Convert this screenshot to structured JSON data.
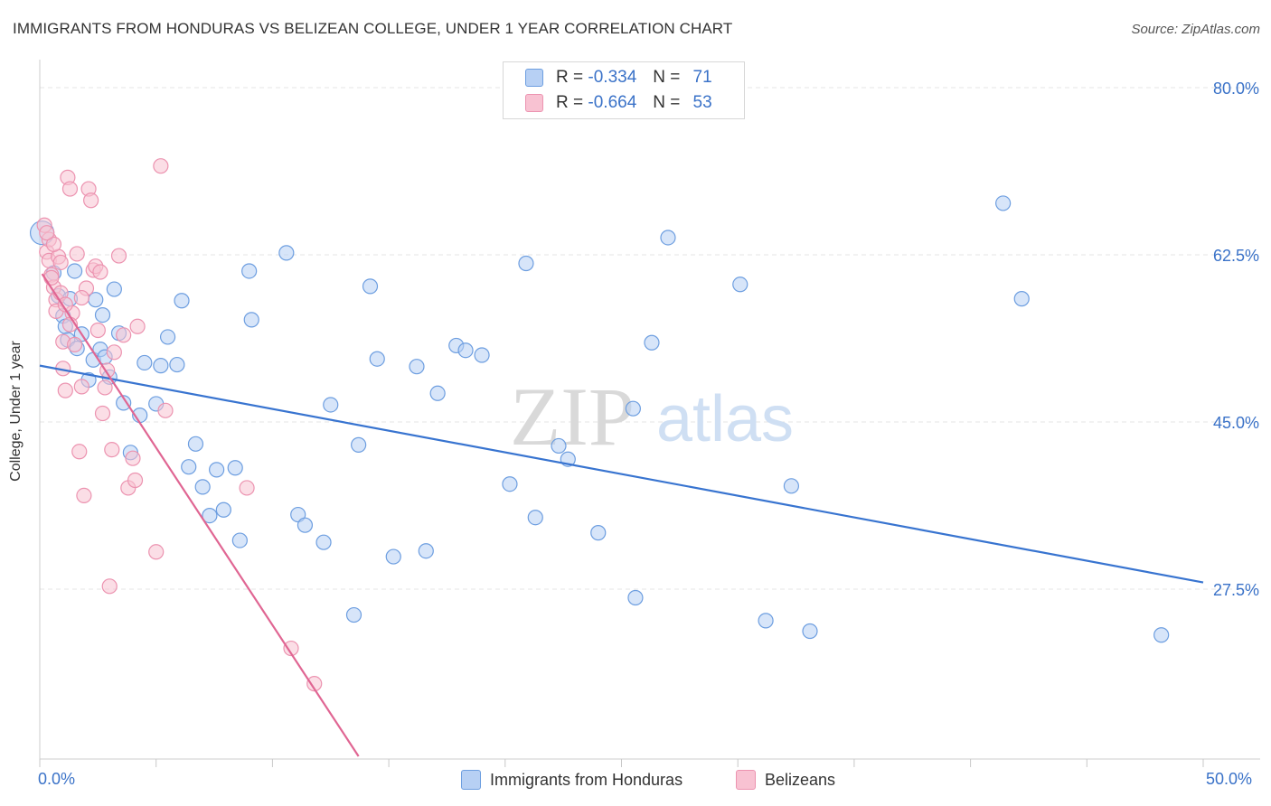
{
  "title": "IMMIGRANTS FROM HONDURAS VS BELIZEAN COLLEGE, UNDER 1 YEAR CORRELATION CHART",
  "source": "Source: ZipAtlas.com",
  "watermark": {
    "zip": "ZIP",
    "atlas": "atlas"
  },
  "legend": {
    "r_label": "R =",
    "n_label": "N =",
    "series": [
      {
        "r": "-0.334",
        "n": "71"
      },
      {
        "r": "-0.664",
        "n": "53"
      }
    ]
  },
  "colors": {
    "blue_fill": "#b7d0f4",
    "blue_stroke": "#6d9ee0",
    "blue_line": "#3874d0",
    "pink_fill": "#f8c2d2",
    "pink_stroke": "#ec93b0",
    "pink_line": "#e06693",
    "grid": "#e4e4e4",
    "tick_label": "#3a72c8"
  },
  "chart_data": {
    "type": "scatter",
    "title": "IMMIGRANTS FROM HONDURAS VS BELIZEAN COLLEGE, UNDER 1 YEAR CORRELATION CHART",
    "xlabel": "",
    "ylabel": "College, Under 1 year",
    "x_tick_labels": [
      "0.0%",
      "50.0%"
    ],
    "y_tick_labels": [
      "80.0%",
      "62.5%",
      "45.0%",
      "27.5%"
    ],
    "y_ticks": [
      80.0,
      62.5,
      45.0,
      27.5
    ],
    "xlim": [
      0,
      50
    ],
    "ylim": [
      10,
      82
    ],
    "grid": true,
    "legend_position": "top-center",
    "series": [
      {
        "name": "Immigrants from Honduras",
        "r": -0.334,
        "n": 71,
        "trend": {
          "x": [
            0,
            50
          ],
          "y": [
            50.9,
            28.2
          ]
        },
        "points": [
          [
            0.1,
            64.8
          ],
          [
            0.6,
            60.6
          ],
          [
            0.8,
            58.2
          ],
          [
            1.0,
            56.1
          ],
          [
            1.1,
            55.0
          ],
          [
            1.2,
            53.6
          ],
          [
            1.3,
            57.9
          ],
          [
            1.5,
            60.8
          ],
          [
            1.6,
            52.7
          ],
          [
            1.8,
            54.2
          ],
          [
            2.1,
            49.4
          ],
          [
            2.3,
            51.5
          ],
          [
            2.4,
            57.8
          ],
          [
            2.6,
            52.6
          ],
          [
            2.7,
            56.2
          ],
          [
            2.8,
            51.8
          ],
          [
            3.0,
            49.7
          ],
          [
            3.2,
            58.9
          ],
          [
            3.4,
            54.3
          ],
          [
            3.6,
            47.0
          ],
          [
            3.9,
            41.8
          ],
          [
            4.3,
            45.7
          ],
          [
            4.5,
            51.2
          ],
          [
            5.0,
            46.9
          ],
          [
            5.2,
            50.9
          ],
          [
            5.5,
            53.9
          ],
          [
            5.9,
            51.0
          ],
          [
            6.1,
            57.7
          ],
          [
            6.4,
            40.3
          ],
          [
            6.7,
            42.7
          ],
          [
            7.0,
            38.2
          ],
          [
            7.3,
            35.2
          ],
          [
            7.6,
            40.0
          ],
          [
            7.9,
            35.8
          ],
          [
            8.4,
            40.2
          ],
          [
            8.6,
            32.6
          ],
          [
            9.1,
            55.7
          ],
          [
            9.0,
            60.8
          ],
          [
            10.6,
            62.7
          ],
          [
            11.1,
            35.3
          ],
          [
            11.4,
            34.2
          ],
          [
            12.2,
            32.4
          ],
          [
            12.5,
            46.8
          ],
          [
            13.5,
            24.8
          ],
          [
            13.7,
            42.6
          ],
          [
            14.2,
            59.2
          ],
          [
            14.5,
            51.6
          ],
          [
            15.2,
            30.9
          ],
          [
            16.2,
            50.8
          ],
          [
            16.6,
            31.5
          ],
          [
            17.1,
            48.0
          ],
          [
            17.9,
            53.0
          ],
          [
            18.3,
            52.5
          ],
          [
            19.0,
            52.0
          ],
          [
            20.2,
            38.5
          ],
          [
            20.9,
            61.6
          ],
          [
            21.3,
            35.0
          ],
          [
            22.3,
            42.5
          ],
          [
            22.7,
            41.1
          ],
          [
            24.0,
            33.4
          ],
          [
            25.5,
            46.4
          ],
          [
            25.6,
            26.6
          ],
          [
            26.3,
            53.3
          ],
          [
            27.0,
            64.3
          ],
          [
            30.1,
            59.4
          ],
          [
            31.2,
            24.2
          ],
          [
            32.3,
            38.3
          ],
          [
            33.1,
            23.1
          ],
          [
            41.4,
            67.9
          ],
          [
            42.2,
            57.9
          ],
          [
            48.2,
            22.7
          ]
        ]
      },
      {
        "name": "Belizeans",
        "r": -0.664,
        "n": 53,
        "trend": {
          "x": [
            0.1,
            13.7
          ],
          "y": [
            60.5,
            10.0
          ]
        },
        "points": [
          [
            0.2,
            65.6
          ],
          [
            0.3,
            62.8
          ],
          [
            0.4,
            61.9
          ],
          [
            0.5,
            60.4
          ],
          [
            0.6,
            59.1
          ],
          [
            0.7,
            57.8
          ],
          [
            0.7,
            56.6
          ],
          [
            0.8,
            62.3
          ],
          [
            0.9,
            58.5
          ],
          [
            1.0,
            53.4
          ],
          [
            1.0,
            50.6
          ],
          [
            1.1,
            48.3
          ],
          [
            1.2,
            70.6
          ],
          [
            1.3,
            69.4
          ],
          [
            1.4,
            56.4
          ],
          [
            1.5,
            53.1
          ],
          [
            1.6,
            62.6
          ],
          [
            1.7,
            41.9
          ],
          [
            1.8,
            48.7
          ],
          [
            1.9,
            37.3
          ],
          [
            2.0,
            59.0
          ],
          [
            2.1,
            69.4
          ],
          [
            2.2,
            68.2
          ],
          [
            2.3,
            60.9
          ],
          [
            2.4,
            61.3
          ],
          [
            2.5,
            54.6
          ],
          [
            2.7,
            45.9
          ],
          [
            2.8,
            48.6
          ],
          [
            2.9,
            50.4
          ],
          [
            3.0,
            27.8
          ],
          [
            3.1,
            42.1
          ],
          [
            3.2,
            52.3
          ],
          [
            3.4,
            62.4
          ],
          [
            3.6,
            54.1
          ],
          [
            3.8,
            38.1
          ],
          [
            4.0,
            41.2
          ],
          [
            4.1,
            38.9
          ],
          [
            4.2,
            55.0
          ],
          [
            5.0,
            31.4
          ],
          [
            5.2,
            71.8
          ],
          [
            5.4,
            46.2
          ],
          [
            8.9,
            38.1
          ],
          [
            10.8,
            21.3
          ],
          [
            11.8,
            17.6
          ],
          [
            0.4,
            64.1
          ],
          [
            0.6,
            63.6
          ],
          [
            1.1,
            57.3
          ],
          [
            1.8,
            58.0
          ],
          [
            2.6,
            60.7
          ],
          [
            0.3,
            64.8
          ],
          [
            0.9,
            61.7
          ],
          [
            1.3,
            55.2
          ],
          [
            0.5,
            60.1
          ]
        ]
      }
    ]
  },
  "bottom_legend": [
    "Immigrants from Honduras",
    "Belizeans"
  ]
}
